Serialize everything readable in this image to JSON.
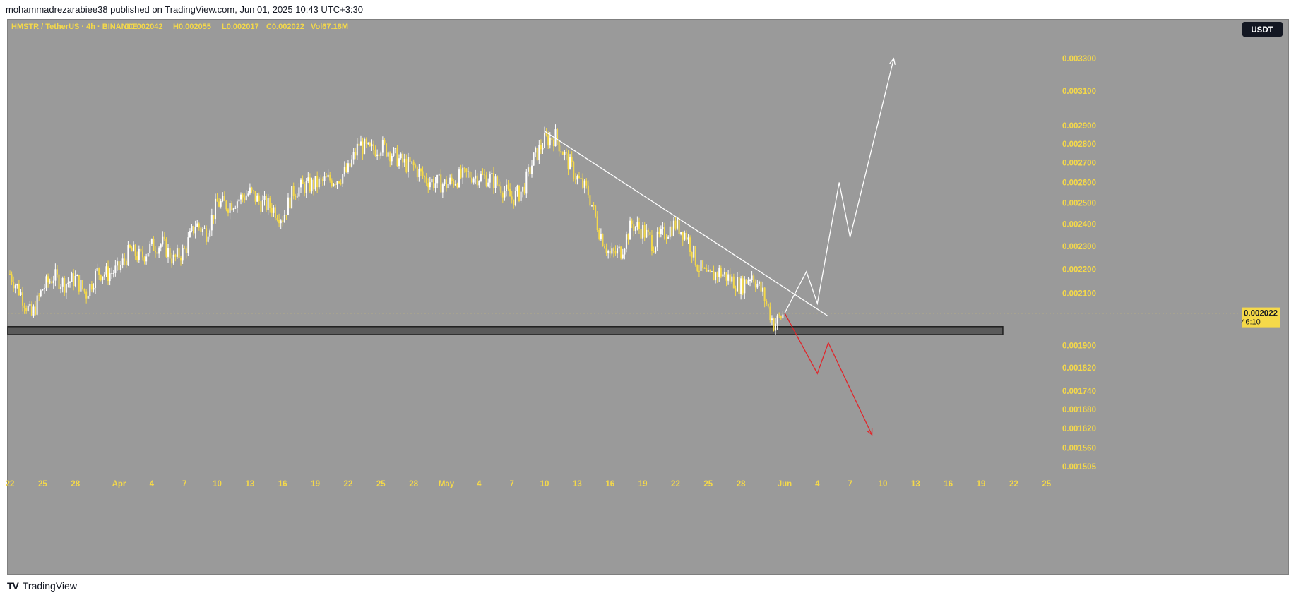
{
  "header": {
    "text": "mohammadrezarabiee38 published on TradingView.com, Jun 01, 2025 10:43 UTC+3:30"
  },
  "footer": {
    "logo": "TV",
    "brand": "TradingView"
  },
  "symbol_bar": {
    "symbol": "HMSTR / TetherUS · 4h · BINANCE",
    "open": "O0.002042",
    "high": "H0.002055",
    "low": "L0.002017",
    "close": "C0.002022",
    "volume": "Vol67.18M"
  },
  "currency_button": "USDT",
  "price_badge": {
    "price": "0.002022",
    "countdown": "46:10"
  },
  "colors": {
    "background": "#9a9a9a",
    "candle_up": "#ffffff",
    "candle_down": "#f5d949",
    "axis_text": "#f5d949",
    "trendline": "#ffffff",
    "bullish_path": "#ffffff",
    "bearish_path": "#e0262b",
    "support_zone": "#5a5a5a"
  },
  "chart_data": {
    "type": "candlestick",
    "title": "",
    "xlabel": "",
    "ylabel": "",
    "y_scale": "log",
    "ylim": [
      0.00148,
      0.00338
    ],
    "y_ticks": [
      "0.003300",
      "0.003100",
      "0.002900",
      "0.002800",
      "0.002700",
      "0.002600",
      "0.002500",
      "0.002400",
      "0.002300",
      "0.002200",
      "0.002100",
      "0.001900",
      "0.001820",
      "0.001740",
      "0.001680",
      "0.001620",
      "0.001560",
      "0.001505"
    ],
    "x_ticks": [
      {
        "date": "2025-03-22",
        "label": "22"
      },
      {
        "date": "2025-03-25",
        "label": "25"
      },
      {
        "date": "2025-03-28",
        "label": "28"
      },
      {
        "date": "2025-04-01",
        "label": "Apr"
      },
      {
        "date": "2025-04-04",
        "label": "4"
      },
      {
        "date": "2025-04-07",
        "label": "7"
      },
      {
        "date": "2025-04-10",
        "label": "10"
      },
      {
        "date": "2025-04-13",
        "label": "13"
      },
      {
        "date": "2025-04-16",
        "label": "16"
      },
      {
        "date": "2025-04-19",
        "label": "19"
      },
      {
        "date": "2025-04-22",
        "label": "22"
      },
      {
        "date": "2025-04-25",
        "label": "25"
      },
      {
        "date": "2025-04-28",
        "label": "28"
      },
      {
        "date": "2025-05-01",
        "label": "May"
      },
      {
        "date": "2025-05-04",
        "label": "4"
      },
      {
        "date": "2025-05-07",
        "label": "7"
      },
      {
        "date": "2025-05-10",
        "label": "10"
      },
      {
        "date": "2025-05-13",
        "label": "13"
      },
      {
        "date": "2025-05-16",
        "label": "16"
      },
      {
        "date": "2025-05-19",
        "label": "19"
      },
      {
        "date": "2025-05-22",
        "label": "22"
      },
      {
        "date": "2025-05-25",
        "label": "25"
      },
      {
        "date": "2025-05-28",
        "label": "28"
      },
      {
        "date": "2025-06-01",
        "label": "Jun"
      },
      {
        "date": "2025-06-04",
        "label": "4"
      },
      {
        "date": "2025-06-07",
        "label": "7"
      },
      {
        "date": "2025-06-10",
        "label": "10"
      },
      {
        "date": "2025-06-13",
        "label": "13"
      },
      {
        "date": "2025-06-16",
        "label": "16"
      },
      {
        "date": "2025-06-19",
        "label": "19"
      },
      {
        "date": "2025-06-22",
        "label": "22"
      },
      {
        "date": "2025-06-25",
        "label": "25"
      }
    ],
    "price_path": [
      {
        "date": "2025-03-22",
        "close": 0.00218
      },
      {
        "date": "2025-03-23",
        "close": 0.0021
      },
      {
        "date": "2025-03-24",
        "close": 0.00201
      },
      {
        "date": "2025-03-25",
        "close": 0.00212
      },
      {
        "date": "2025-03-26",
        "close": 0.00217
      },
      {
        "date": "2025-03-27",
        "close": 0.00214
      },
      {
        "date": "2025-03-28",
        "close": 0.00216
      },
      {
        "date": "2025-03-29",
        "close": 0.0021
      },
      {
        "date": "2025-03-30",
        "close": 0.00219
      },
      {
        "date": "2025-03-31",
        "close": 0.00218
      },
      {
        "date": "2025-04-01",
        "close": 0.0022
      },
      {
        "date": "2025-04-02",
        "close": 0.00228
      },
      {
        "date": "2025-04-03",
        "close": 0.00225
      },
      {
        "date": "2025-04-04",
        "close": 0.0023
      },
      {
        "date": "2025-04-05",
        "close": 0.00231
      },
      {
        "date": "2025-04-06",
        "close": 0.00224
      },
      {
        "date": "2025-04-07",
        "close": 0.00228
      },
      {
        "date": "2025-04-08",
        "close": 0.0024
      },
      {
        "date": "2025-04-09",
        "close": 0.00236
      },
      {
        "date": "2025-04-10",
        "close": 0.0025
      },
      {
        "date": "2025-04-11",
        "close": 0.00249
      },
      {
        "date": "2025-04-12",
        "close": 0.00252
      },
      {
        "date": "2025-04-13",
        "close": 0.00255
      },
      {
        "date": "2025-04-14",
        "close": 0.0025
      },
      {
        "date": "2025-04-15",
        "close": 0.00248
      },
      {
        "date": "2025-04-16",
        "close": 0.00243
      },
      {
        "date": "2025-04-17",
        "close": 0.00256
      },
      {
        "date": "2025-04-18",
        "close": 0.00258
      },
      {
        "date": "2025-04-19",
        "close": 0.00259
      },
      {
        "date": "2025-04-20",
        "close": 0.00261
      },
      {
        "date": "2025-04-21",
        "close": 0.00262
      },
      {
        "date": "2025-04-22",
        "close": 0.00266
      },
      {
        "date": "2025-04-23",
        "close": 0.0028
      },
      {
        "date": "2025-04-24",
        "close": 0.00276
      },
      {
        "date": "2025-04-25",
        "close": 0.00279
      },
      {
        "date": "2025-04-26",
        "close": 0.00275
      },
      {
        "date": "2025-04-27",
        "close": 0.0027
      },
      {
        "date": "2025-04-28",
        "close": 0.00268
      },
      {
        "date": "2025-04-29",
        "close": 0.00262
      },
      {
        "date": "2025-04-30",
        "close": 0.0026
      },
      {
        "date": "2025-05-01",
        "close": 0.00259
      },
      {
        "date": "2025-05-02",
        "close": 0.00262
      },
      {
        "date": "2025-05-03",
        "close": 0.00264
      },
      {
        "date": "2025-05-04",
        "close": 0.00263
      },
      {
        "date": "2025-05-05",
        "close": 0.00262
      },
      {
        "date": "2025-05-06",
        "close": 0.00258
      },
      {
        "date": "2025-05-07",
        "close": 0.00252
      },
      {
        "date": "2025-05-08",
        "close": 0.00256
      },
      {
        "date": "2025-05-09",
        "close": 0.00272
      },
      {
        "date": "2025-05-10",
        "close": 0.00282
      },
      {
        "date": "2025-05-11",
        "close": 0.00284
      },
      {
        "date": "2025-05-12",
        "close": 0.00272
      },
      {
        "date": "2025-05-13",
        "close": 0.00262
      },
      {
        "date": "2025-05-14",
        "close": 0.00255
      },
      {
        "date": "2025-05-15",
        "close": 0.00237
      },
      {
        "date": "2025-05-16",
        "close": 0.00226
      },
      {
        "date": "2025-05-17",
        "close": 0.00228
      },
      {
        "date": "2025-05-18",
        "close": 0.0024
      },
      {
        "date": "2025-05-19",
        "close": 0.00237
      },
      {
        "date": "2025-05-20",
        "close": 0.00231
      },
      {
        "date": "2025-05-21",
        "close": 0.00236
      },
      {
        "date": "2025-05-22",
        "close": 0.0024
      },
      {
        "date": "2025-05-23",
        "close": 0.00235
      },
      {
        "date": "2025-05-24",
        "close": 0.00222
      },
      {
        "date": "2025-05-25",
        "close": 0.00216
      },
      {
        "date": "2025-05-26",
        "close": 0.00219
      },
      {
        "date": "2025-05-27",
        "close": 0.00216
      },
      {
        "date": "2025-05-28",
        "close": 0.00213
      },
      {
        "date": "2025-05-29",
        "close": 0.00218
      },
      {
        "date": "2025-05-30",
        "close": 0.0021
      },
      {
        "date": "2025-05-31",
        "close": 0.00198
      },
      {
        "date": "2025-06-01",
        "close": 0.002022
      }
    ],
    "current_price": 0.002022,
    "annotations": {
      "trendline": [
        {
          "date": "2025-05-10",
          "price": 0.00287
        },
        {
          "date": "2025-06-05",
          "price": 0.00201
        }
      ],
      "support_zone": {
        "from": "2025-03-22",
        "to": "2025-06-21",
        "top": 0.00197,
        "bottom": 0.00194
      },
      "bullish_projection": [
        {
          "date": "2025-06-01",
          "price": 0.002022
        },
        {
          "date": "2025-06-03",
          "price": 0.00219
        },
        {
          "date": "2025-06-04",
          "price": 0.00206
        },
        {
          "date": "2025-06-06",
          "price": 0.0026
        },
        {
          "date": "2025-06-07",
          "price": 0.00234
        },
        {
          "date": "2025-06-11",
          "price": 0.0033
        }
      ],
      "bearish_projection": [
        {
          "date": "2025-06-01",
          "price": 0.002022
        },
        {
          "date": "2025-06-04",
          "price": 0.0018
        },
        {
          "date": "2025-06-05",
          "price": 0.00191
        },
        {
          "date": "2025-06-09",
          "price": 0.0016
        }
      ]
    }
  }
}
